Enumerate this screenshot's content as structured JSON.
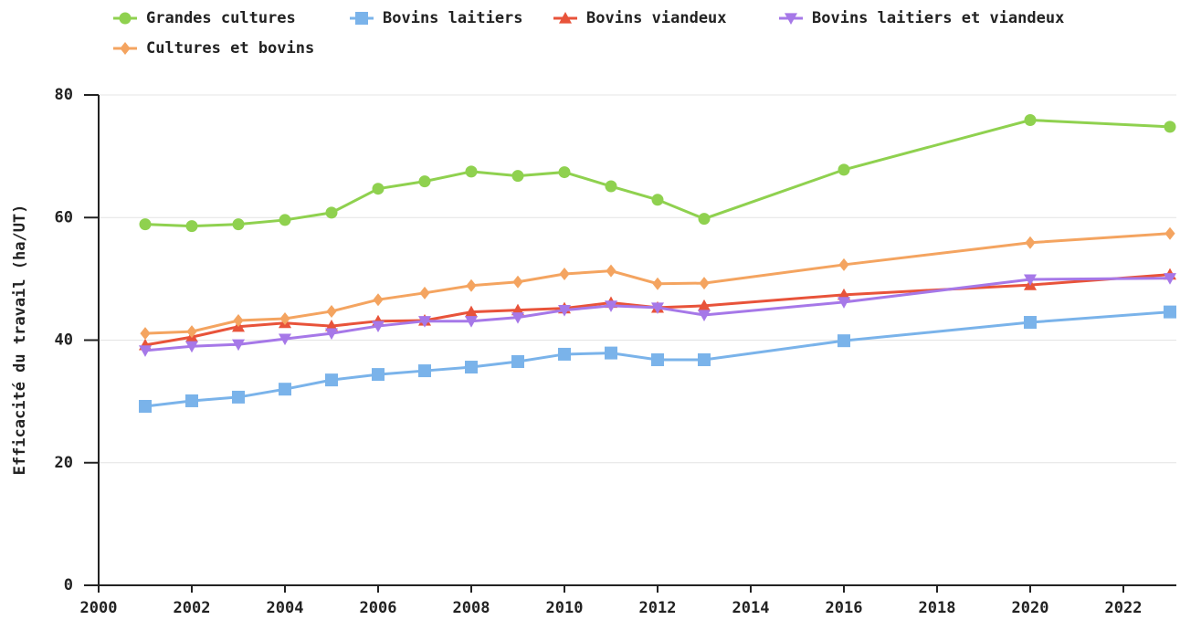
{
  "chart_data": {
    "type": "line",
    "y_label": "Efficacité du travail (ha/UT)",
    "x": [
      2001,
      2002,
      2003,
      2004,
      2005,
      2006,
      2007,
      2008,
      2009,
      2010,
      2011,
      2012,
      2013,
      2016,
      2020,
      2023
    ],
    "series": [
      {
        "name": "Grandes cultures",
        "color": "#8fd14f",
        "marker": "circle",
        "values": [
          58.9,
          58.6,
          58.9,
          59.6,
          60.8,
          64.7,
          65.9,
          67.5,
          66.8,
          67.4,
          65.1,
          62.9,
          59.8,
          67.8,
          75.9,
          74.8
        ]
      },
      {
        "name": "Bovins laitiers",
        "color": "#7ab3ea",
        "marker": "square",
        "values": [
          29.2,
          30.1,
          30.7,
          32.0,
          33.5,
          34.4,
          35.0,
          35.6,
          36.5,
          37.7,
          37.9,
          36.8,
          36.8,
          39.9,
          42.9,
          44.6
        ]
      },
      {
        "name": "Bovins viandeux",
        "color": "#e8533a",
        "marker": "triangle-up",
        "values": [
          39.2,
          40.5,
          42.2,
          42.8,
          42.3,
          43.1,
          43.2,
          44.6,
          44.9,
          45.2,
          46.1,
          45.3,
          45.6,
          47.4,
          49.0,
          50.7
        ]
      },
      {
        "name": "Bovins laitiers et viandeux",
        "color": "#a678e8",
        "marker": "triangle-down",
        "values": [
          38.3,
          39.0,
          39.3,
          40.2,
          41.1,
          42.3,
          43.1,
          43.1,
          43.7,
          44.9,
          45.6,
          45.3,
          44.1,
          46.2,
          49.9,
          50.1
        ]
      },
      {
        "name": "Cultures et bovins",
        "color": "#f4a460",
        "marker": "diamond",
        "values": [
          41.1,
          41.4,
          43.2,
          43.5,
          44.7,
          46.6,
          47.7,
          48.9,
          49.5,
          50.8,
          51.3,
          49.2,
          49.3,
          52.3,
          55.9,
          57.4
        ]
      }
    ],
    "xlim": [
      2000,
      2023
    ],
    "xticks": [
      2000,
      2002,
      2004,
      2006,
      2008,
      2010,
      2012,
      2014,
      2016,
      2018,
      2020,
      2022
    ],
    "ylim": [
      0,
      80
    ],
    "yticks": [
      0,
      20,
      40,
      60,
      80
    ],
    "grid": true,
    "legend": "top"
  }
}
